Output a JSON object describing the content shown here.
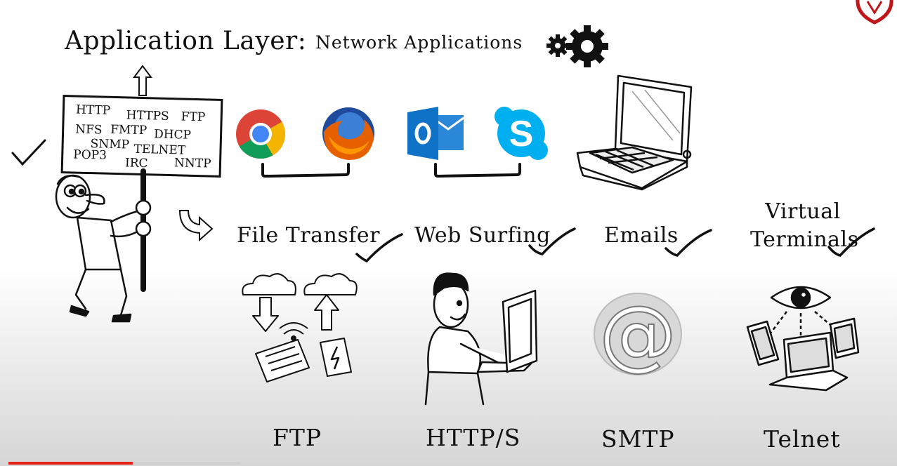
{
  "header": {
    "title": "Application Layer:",
    "subtitle": "Network Applications"
  },
  "sign": {
    "protocols": [
      "HTTP",
      "HTTPS",
      "FTP",
      "NFS",
      "FMTP",
      "DHCP",
      "SNMP",
      "TELNET",
      "POP3",
      "IRC",
      "NNTP"
    ]
  },
  "categories": [
    {
      "label": "File Transfer",
      "protocol": "FTP"
    },
    {
      "label": "Web Surfing",
      "protocol": "HTTP/S"
    },
    {
      "label": "Emails",
      "protocol": "SMTP"
    },
    {
      "label": "Virtual Terminals",
      "protocol": "Telnet"
    }
  ],
  "apps": [
    "Chrome",
    "Firefox",
    "Outlook",
    "Skype"
  ],
  "icons": {
    "gears": "gears-icon",
    "chrome": "chrome-icon",
    "firefox": "firefox-icon",
    "outlook": "outlook-icon",
    "skype": "skype-icon",
    "laptop": "laptop-icon",
    "at": "at-sign-icon",
    "eye": "eye-icon"
  },
  "colors": {
    "progress": "#e62117",
    "outlook": "#0f72c6",
    "skype": "#00aff0",
    "chrome_red": "#db4437",
    "chrome_green": "#0f9d58",
    "chrome_yellow": "#f4b400",
    "chrome_blue": "#4285f4",
    "firefox": "#e66000"
  },
  "video": {
    "progress_fraction": 0.14
  }
}
